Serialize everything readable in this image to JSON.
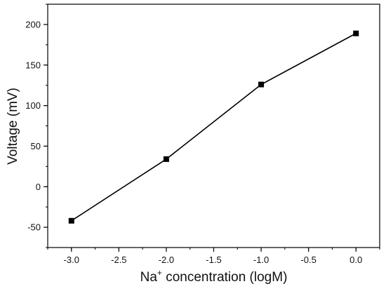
{
  "chart_data": {
    "type": "line",
    "xlabel_prefix": "Na",
    "xlabel_sup": "+",
    "xlabel_suffix": " concentration (logM)",
    "ylabel": "Voltage (mV)",
    "xlim": [
      -3.25,
      0.25
    ],
    "ylim": [
      -75,
      225
    ],
    "x_ticks": [
      -3.0,
      -2.5,
      -2.0,
      -1.5,
      -1.0,
      -0.5,
      0.0
    ],
    "x_tick_labels": [
      "-3.0",
      "-2.5",
      "-2.0",
      "-1.5",
      "-1.0",
      "-0.5",
      "0.0"
    ],
    "y_ticks": [
      -50,
      0,
      50,
      100,
      150,
      200
    ],
    "y_tick_labels": [
      "-50",
      "0",
      "50",
      "100",
      "150",
      "200"
    ],
    "x_minor_step": 0.25,
    "y_minor_step": 25,
    "grid": false,
    "legend": "none",
    "series": [
      {
        "x": [
          -3.0,
          -2.0,
          -1.0,
          0.0
        ],
        "y": [
          -42,
          34,
          126,
          189
        ],
        "color": "#000000",
        "marker": "square"
      }
    ]
  }
}
